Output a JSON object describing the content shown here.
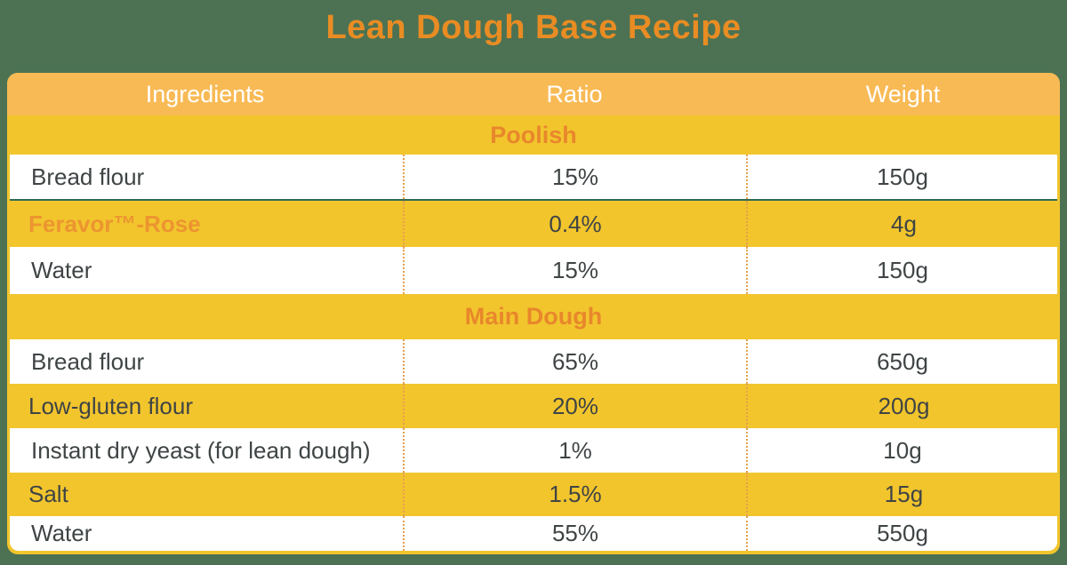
{
  "title": "Lean Dough Base Recipe",
  "colors": {
    "page_background": "#4C7253",
    "header_row": "#F8BA55",
    "accent_yellow": "#F2C52D",
    "title_orange": "#E98C23",
    "section_label_orange": "#E8872B",
    "brand_orange": "#EC9530",
    "body_text": "#3F4445",
    "divider_teal": "#2E6B51",
    "dotted_separator": "#E5A14C"
  },
  "chart_data": {
    "type": "table",
    "title": "Lean Dough Base Recipe",
    "columns": [
      "Ingredients",
      "Ratio",
      "Weight"
    ],
    "sections": [
      {
        "label": "Poolish",
        "rows": [
          {
            "ingredient": "Bread flour",
            "ratio": "15%",
            "weight": "150g"
          },
          {
            "ingredient": "Feravor™-Rose",
            "ratio": "0.4%",
            "weight": "4g"
          },
          {
            "ingredient": "Water",
            "ratio": "15%",
            "weight": "150g"
          }
        ]
      },
      {
        "label": "Main Dough",
        "rows": [
          {
            "ingredient": "Bread flour",
            "ratio": "65%",
            "weight": "650g"
          },
          {
            "ingredient": "Low-gluten flour",
            "ratio": "20%",
            "weight": "200g"
          },
          {
            "ingredient": "Instant dry yeast (for lean dough)",
            "ratio": "1%",
            "weight": "10g"
          },
          {
            "ingredient": "Salt",
            "ratio": "1.5%",
            "weight": "15g"
          },
          {
            "ingredient": "Water",
            "ratio": "55%",
            "weight": "550g"
          }
        ]
      }
    ]
  }
}
